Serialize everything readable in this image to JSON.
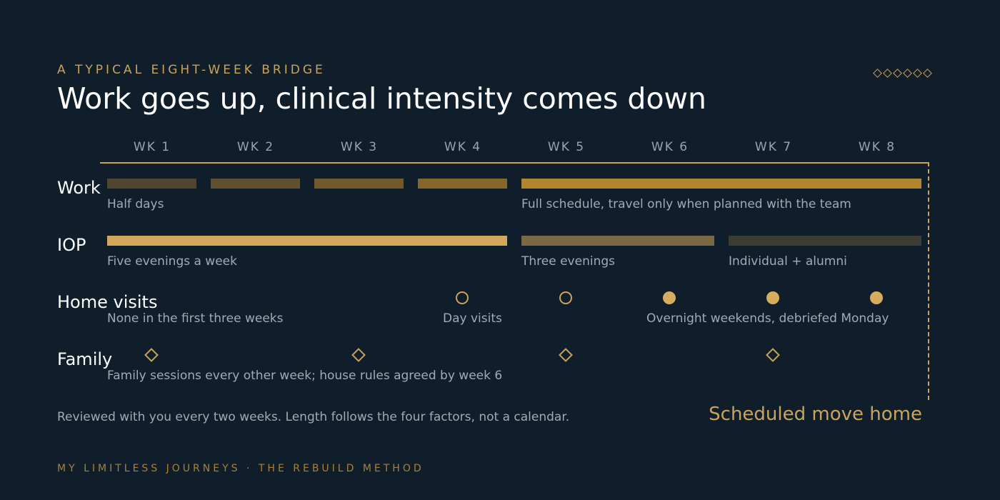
{
  "eyebrow": "A TYPICAL EIGHT-WEEK BRIDGE",
  "title": "Work goes up, clinical intensity comes down",
  "weeks": [
    "WK 1",
    "WK 2",
    "WK 3",
    "WK 4",
    "WK 5",
    "WK 6",
    "WK 7",
    "WK 8"
  ],
  "rows": {
    "work": {
      "label": "Work",
      "notes": [
        "Half days",
        "Full schedule, travel only when planned with the team"
      ],
      "segments": [
        {
          "from": 1,
          "to": 1,
          "color": "#4f4530"
        },
        {
          "from": 2,
          "to": 2,
          "color": "#5f5030"
        },
        {
          "from": 3,
          "to": 3,
          "color": "#705a2e"
        },
        {
          "from": 4,
          "to": 4,
          "color": "#85672c"
        },
        {
          "from": 5,
          "to": 8,
          "color": "#b2862f"
        }
      ]
    },
    "iop": {
      "label": "IOP",
      "notes": [
        "Five evenings a week",
        "Three evenings",
        "Individual + alumni"
      ],
      "segments": [
        {
          "from": 1,
          "to": 4,
          "color": "#d4a85a"
        },
        {
          "from": 5,
          "to": 6.5,
          "color": "#7a6945"
        },
        {
          "from": 6.5,
          "to": 8,
          "color": "#3b3c33"
        }
      ]
    },
    "home_visits": {
      "label": "Home visits",
      "notes": [
        "None in the first three weeks",
        "Day visits",
        "Overnight weekends, debriefed Monday"
      ],
      "markers": [
        {
          "week": 4,
          "filled": false
        },
        {
          "week": 5,
          "filled": false
        },
        {
          "week": 6,
          "filled": true
        },
        {
          "week": 7,
          "filled": true
        },
        {
          "week": 8,
          "filled": true
        }
      ]
    },
    "family": {
      "label": "Family",
      "notes": [
        "Family sessions every other week; house rules agreed by week 6"
      ],
      "markers": [
        1,
        3,
        5,
        7
      ]
    }
  },
  "footnote": "Reviewed with you every two weeks. Length follows the four factors, not a calendar.",
  "milestone": "Scheduled move home",
  "brand": "MY LIMITLESS JOURNEYS · THE REBUILD METHOD",
  "colors": {
    "accent": "#c9a45a",
    "background": "#101e2b",
    "brand": "#a5813a"
  }
}
